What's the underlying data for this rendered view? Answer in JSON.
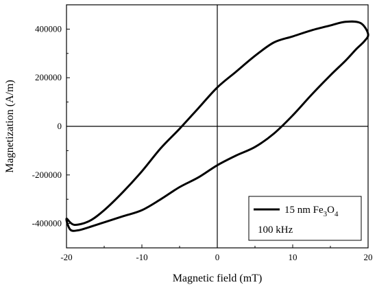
{
  "chart_data": {
    "type": "line",
    "xlabel": "Magnetic field (mT)",
    "ylabel": "Magnetization (A/m)",
    "xlim": [
      -20,
      20
    ],
    "ylim": [
      -500000,
      500000
    ],
    "x_ticks": [
      -20,
      -10,
      0,
      10,
      20
    ],
    "x_tick_labels": [
      "-20",
      "-10",
      "0",
      "10",
      "20"
    ],
    "y_ticks": [
      -400000,
      -200000,
      0,
      200000,
      400000
    ],
    "y_tick_labels": [
      "-400000",
      "-200000",
      "0",
      "200000",
      "400000"
    ],
    "zero_lines": true,
    "grid": false,
    "legend": {
      "placement": "bottom-right",
      "entry_text": "15 nm Fe",
      "entry_sub1": "3",
      "entry_mid": "O",
      "entry_sub2": "4",
      "note": "100 kHz"
    },
    "series": [
      {
        "x": [
          -20,
          -19,
          -17,
          -15,
          -12.5,
          -10,
          -7.5,
          -5,
          -2.5,
          0,
          2.5,
          5,
          7.5,
          10,
          12.5,
          15,
          17,
          19,
          20,
          19.5,
          18.5,
          17,
          15,
          12.5,
          10,
          7.5,
          5,
          2.5,
          0,
          -2.5,
          -5,
          -7.5,
          -10,
          -12.5,
          -15,
          -17,
          -18.5,
          -19.5,
          -20
        ],
        "y": [
          -380000,
          -405000,
          -390000,
          -345000,
          -270000,
          -185000,
          -90000,
          -10000,
          75000,
          160000,
          225000,
          290000,
          345000,
          370000,
          395000,
          415000,
          430000,
          425000,
          380000,
          350000,
          320000,
          270000,
          210000,
          130000,
          45000,
          -30000,
          -85000,
          -120000,
          -160000,
          -210000,
          -250000,
          -300000,
          -345000,
          -370000,
          -395000,
          -415000,
          -428000,
          -425000,
          -380000
        ]
      }
    ]
  }
}
